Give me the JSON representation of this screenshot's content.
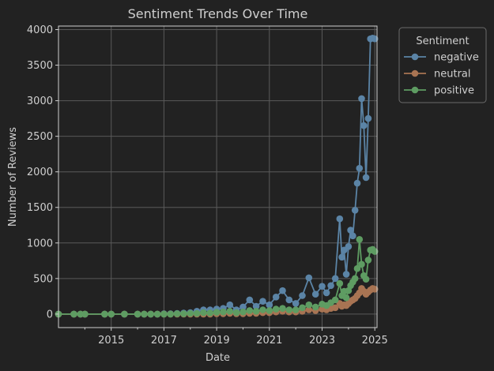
{
  "chart_data": {
    "type": "line",
    "title": "Sentiment Trends Over Time",
    "xlabel": "Date",
    "ylabel": "Number of Reviews",
    "x_ticks": [
      "2015",
      "2017",
      "2019",
      "2021",
      "2023",
      "2025"
    ],
    "y_ticks": [
      "0",
      "500",
      "1000",
      "1500",
      "2000",
      "2500",
      "3000",
      "3500",
      "4000"
    ],
    "xlim": [
      "2013-01",
      "2025-02"
    ],
    "ylim": [
      -190,
      4050
    ],
    "grid": true,
    "legend": {
      "title": "Sentiment",
      "placement": "outside-right"
    },
    "series": [
      {
        "name": "negative",
        "color": "#5b84a6",
        "x": [
          "2013-01",
          "2013-08",
          "2013-11",
          "2014-01",
          "2014-10",
          "2015-01",
          "2015-07",
          "2016-01",
          "2016-04",
          "2016-07",
          "2016-10",
          "2017-01",
          "2017-04",
          "2017-07",
          "2017-10",
          "2018-01",
          "2018-04",
          "2018-07",
          "2018-10",
          "2019-01",
          "2019-04",
          "2019-07",
          "2019-10",
          "2020-01",
          "2020-04",
          "2020-07",
          "2020-10",
          "2021-01",
          "2021-04",
          "2021-07",
          "2021-10",
          "2022-01",
          "2022-04",
          "2022-07",
          "2022-10",
          "2023-01",
          "2023-03",
          "2023-05",
          "2023-07",
          "2023-09",
          "2023-10",
          "2023-11",
          "2023-12",
          "2024-01",
          "2024-02",
          "2024-03",
          "2024-04",
          "2024-05",
          "2024-06",
          "2024-07",
          "2024-08",
          "2024-09",
          "2024-10",
          "2024-11",
          "2024-12",
          "2025-01"
        ],
        "values": [
          0,
          0,
          0,
          0,
          0,
          0,
          0,
          0,
          0,
          0,
          0,
          5,
          5,
          10,
          15,
          20,
          40,
          60,
          60,
          70,
          80,
          130,
          60,
          100,
          200,
          110,
          180,
          130,
          240,
          330,
          200,
          150,
          260,
          510,
          280,
          390,
          300,
          400,
          500,
          1340,
          800,
          900,
          560,
          950,
          1180,
          1100,
          1460,
          1840,
          2050,
          3030,
          2650,
          1920,
          2750,
          3870,
          3880,
          3870
        ]
      },
      {
        "name": "neutral",
        "color": "#a87453",
        "x": [
          "2013-01",
          "2013-08",
          "2013-11",
          "2014-01",
          "2014-10",
          "2015-01",
          "2015-07",
          "2016-01",
          "2016-04",
          "2016-07",
          "2016-10",
          "2017-01",
          "2017-04",
          "2017-07",
          "2017-10",
          "2018-01",
          "2018-04",
          "2018-07",
          "2018-10",
          "2019-01",
          "2019-04",
          "2019-07",
          "2019-10",
          "2020-01",
          "2020-04",
          "2020-07",
          "2020-10",
          "2021-01",
          "2021-04",
          "2021-07",
          "2021-10",
          "2022-01",
          "2022-04",
          "2022-07",
          "2022-10",
          "2023-01",
          "2023-03",
          "2023-05",
          "2023-07",
          "2023-09",
          "2023-10",
          "2023-11",
          "2023-12",
          "2024-01",
          "2024-02",
          "2024-03",
          "2024-04",
          "2024-05",
          "2024-06",
          "2024-07",
          "2024-08",
          "2024-09",
          "2024-10",
          "2024-11",
          "2024-12",
          "2025-01"
        ],
        "values": [
          0,
          0,
          0,
          0,
          0,
          0,
          0,
          0,
          0,
          0,
          0,
          0,
          0,
          0,
          0,
          0,
          0,
          0,
          0,
          5,
          5,
          10,
          5,
          5,
          10,
          10,
          20,
          20,
          30,
          40,
          30,
          30,
          40,
          60,
          50,
          70,
          60,
          80,
          90,
          150,
          110,
          130,
          120,
          150,
          180,
          200,
          220,
          260,
          300,
          360,
          320,
          280,
          310,
          340,
          360,
          350
        ]
      },
      {
        "name": "positive",
        "color": "#5e9c62",
        "x": [
          "2013-01",
          "2013-08",
          "2013-11",
          "2014-01",
          "2014-10",
          "2015-01",
          "2015-07",
          "2016-01",
          "2016-04",
          "2016-07",
          "2016-10",
          "2017-01",
          "2017-04",
          "2017-07",
          "2017-10",
          "2018-01",
          "2018-04",
          "2018-07",
          "2018-10",
          "2019-01",
          "2019-04",
          "2019-07",
          "2019-10",
          "2020-01",
          "2020-04",
          "2020-07",
          "2020-10",
          "2021-01",
          "2021-04",
          "2021-07",
          "2021-10",
          "2022-01",
          "2022-04",
          "2022-07",
          "2022-10",
          "2023-01",
          "2023-03",
          "2023-05",
          "2023-07",
          "2023-09",
          "2023-10",
          "2023-11",
          "2023-12",
          "2024-01",
          "2024-02",
          "2024-03",
          "2024-04",
          "2024-05",
          "2024-06",
          "2024-07",
          "2024-08",
          "2024-09",
          "2024-10",
          "2024-11",
          "2024-12",
          "2025-01"
        ],
        "values": [
          0,
          0,
          0,
          0,
          0,
          0,
          0,
          0,
          0,
          0,
          0,
          0,
          0,
          5,
          5,
          10,
          10,
          20,
          15,
          25,
          30,
          40,
          20,
          30,
          50,
          40,
          60,
          50,
          70,
          80,
          60,
          60,
          90,
          130,
          100,
          140,
          120,
          160,
          200,
          430,
          260,
          320,
          230,
          330,
          400,
          450,
          500,
          640,
          1050,
          700,
          540,
          490,
          760,
          900,
          910,
          880
        ]
      }
    ]
  }
}
